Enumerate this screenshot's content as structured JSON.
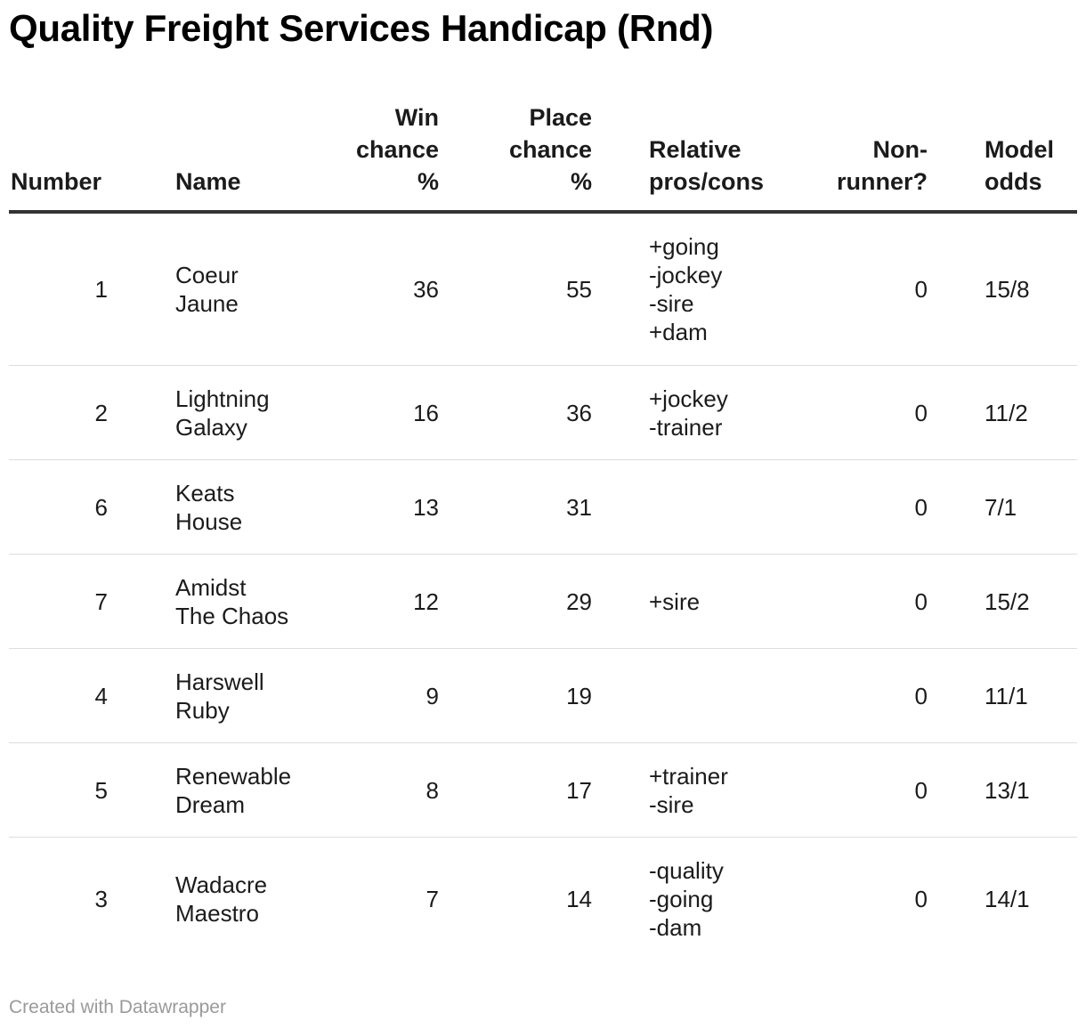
{
  "title": "Quality Freight Services Handicap (Rnd)",
  "columns": {
    "number": [
      "Number"
    ],
    "name": [
      "Name"
    ],
    "win": [
      "Win",
      "chance",
      "%"
    ],
    "place": [
      "Place",
      "chance",
      "%"
    ],
    "pros": [
      "Relative",
      "pros/cons"
    ],
    "nonrunner": [
      "Non-",
      "runner?"
    ],
    "odds": [
      "Model",
      "odds"
    ]
  },
  "rows": [
    {
      "number": "1",
      "name": [
        "Coeur",
        "Jaune"
      ],
      "win": "36",
      "place": "55",
      "pros": [
        "+going",
        "-jockey",
        "-sire",
        "+dam"
      ],
      "nonrunner": "0",
      "odds": "15/8"
    },
    {
      "number": "2",
      "name": [
        "Lightning",
        "Galaxy"
      ],
      "win": "16",
      "place": "36",
      "pros": [
        "+jockey",
        "-trainer"
      ],
      "nonrunner": "0",
      "odds": "11/2"
    },
    {
      "number": "6",
      "name": [
        "Keats",
        "House"
      ],
      "win": "13",
      "place": "31",
      "pros": [],
      "nonrunner": "0",
      "odds": "7/1"
    },
    {
      "number": "7",
      "name": [
        "Amidst",
        "The Chaos"
      ],
      "win": "12",
      "place": "29",
      "pros": [
        "+sire"
      ],
      "nonrunner": "0",
      "odds": "15/2"
    },
    {
      "number": "4",
      "name": [
        "Harswell",
        "Ruby"
      ],
      "win": "9",
      "place": "19",
      "pros": [],
      "nonrunner": "0",
      "odds": "11/1"
    },
    {
      "number": "5",
      "name": [
        "Renewable",
        "Dream"
      ],
      "win": "8",
      "place": "17",
      "pros": [
        "+trainer",
        "-sire"
      ],
      "nonrunner": "0",
      "odds": "13/1"
    },
    {
      "number": "3",
      "name": [
        "Wadacre",
        "Maestro"
      ],
      "win": "7",
      "place": "14",
      "pros": [
        "-quality",
        "-going",
        "-dam"
      ],
      "nonrunner": "0",
      "odds": "14/1"
    }
  ],
  "footer": "Created with Datawrapper"
}
